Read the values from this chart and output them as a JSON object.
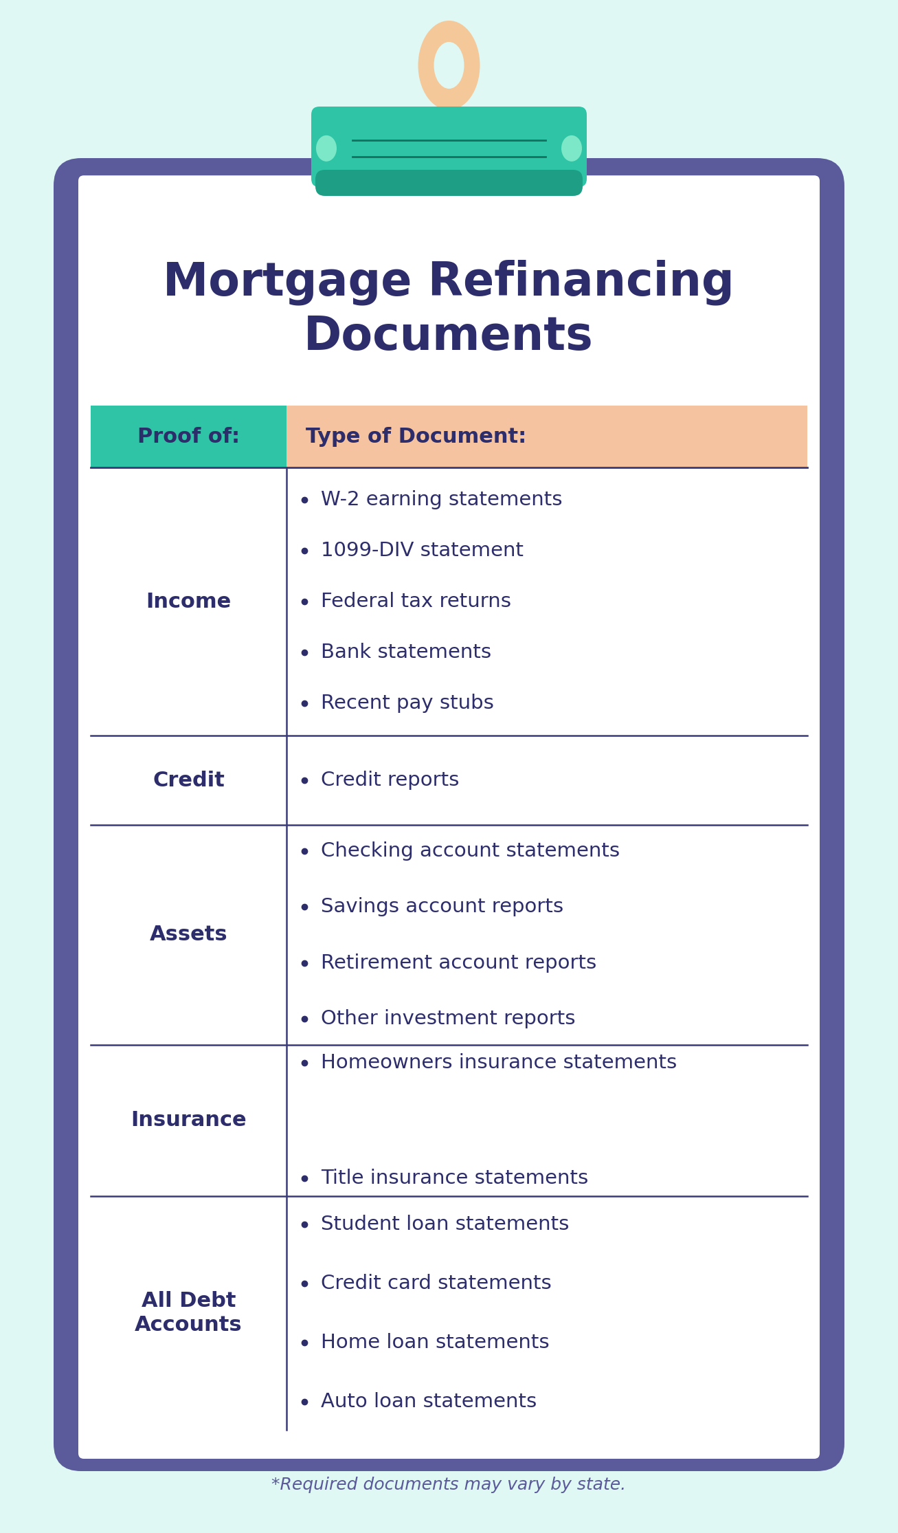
{
  "title": "Mortgage Refinancing\nDocuments",
  "title_color": "#2d2d6b",
  "bg_color": "#dff8f3",
  "clipboard_border_color": "#5b5b9b",
  "clipboard_bg": "#ffffff",
  "clip_top_color": "#2ec4a5",
  "clip_dark_color": "#1d9e85",
  "clip_ring_color": "#f5c89a",
  "header_left_color": "#2ec4a5",
  "header_right_color": "#f5c3a0",
  "header_text_color": "#2d2d6b",
  "col1_header": "Proof of:",
  "col2_header": "Type of Document:",
  "row_label_color": "#2d2d6b",
  "row_text_color": "#2d2d6b",
  "divider_color": "#3a3a7a",
  "col_divider_color": "#3a3a7a",
  "footnote": "*Required documents may vary by state.",
  "footnote_color": "#5a5a9a",
  "rows": [
    {
      "label": "Income",
      "items": [
        "W-2 earning statements",
        "1099-DIV statement",
        "Federal tax returns",
        "Bank statements",
        "Recent pay stubs"
      ]
    },
    {
      "label": "Credit",
      "items": [
        "Credit reports"
      ]
    },
    {
      "label": "Assets",
      "items": [
        "Checking account statements",
        "Savings account reports",
        "Retirement account reports",
        "Other investment reports"
      ]
    },
    {
      "label": "Insurance",
      "items": [
        "Homeowners insurance statements",
        "Title insurance statements"
      ]
    },
    {
      "label": "All Debt\nAccounts",
      "items": [
        "Student loan statements",
        "Credit card statements",
        "Home loan statements",
        "Auto loan statements"
      ]
    }
  ]
}
